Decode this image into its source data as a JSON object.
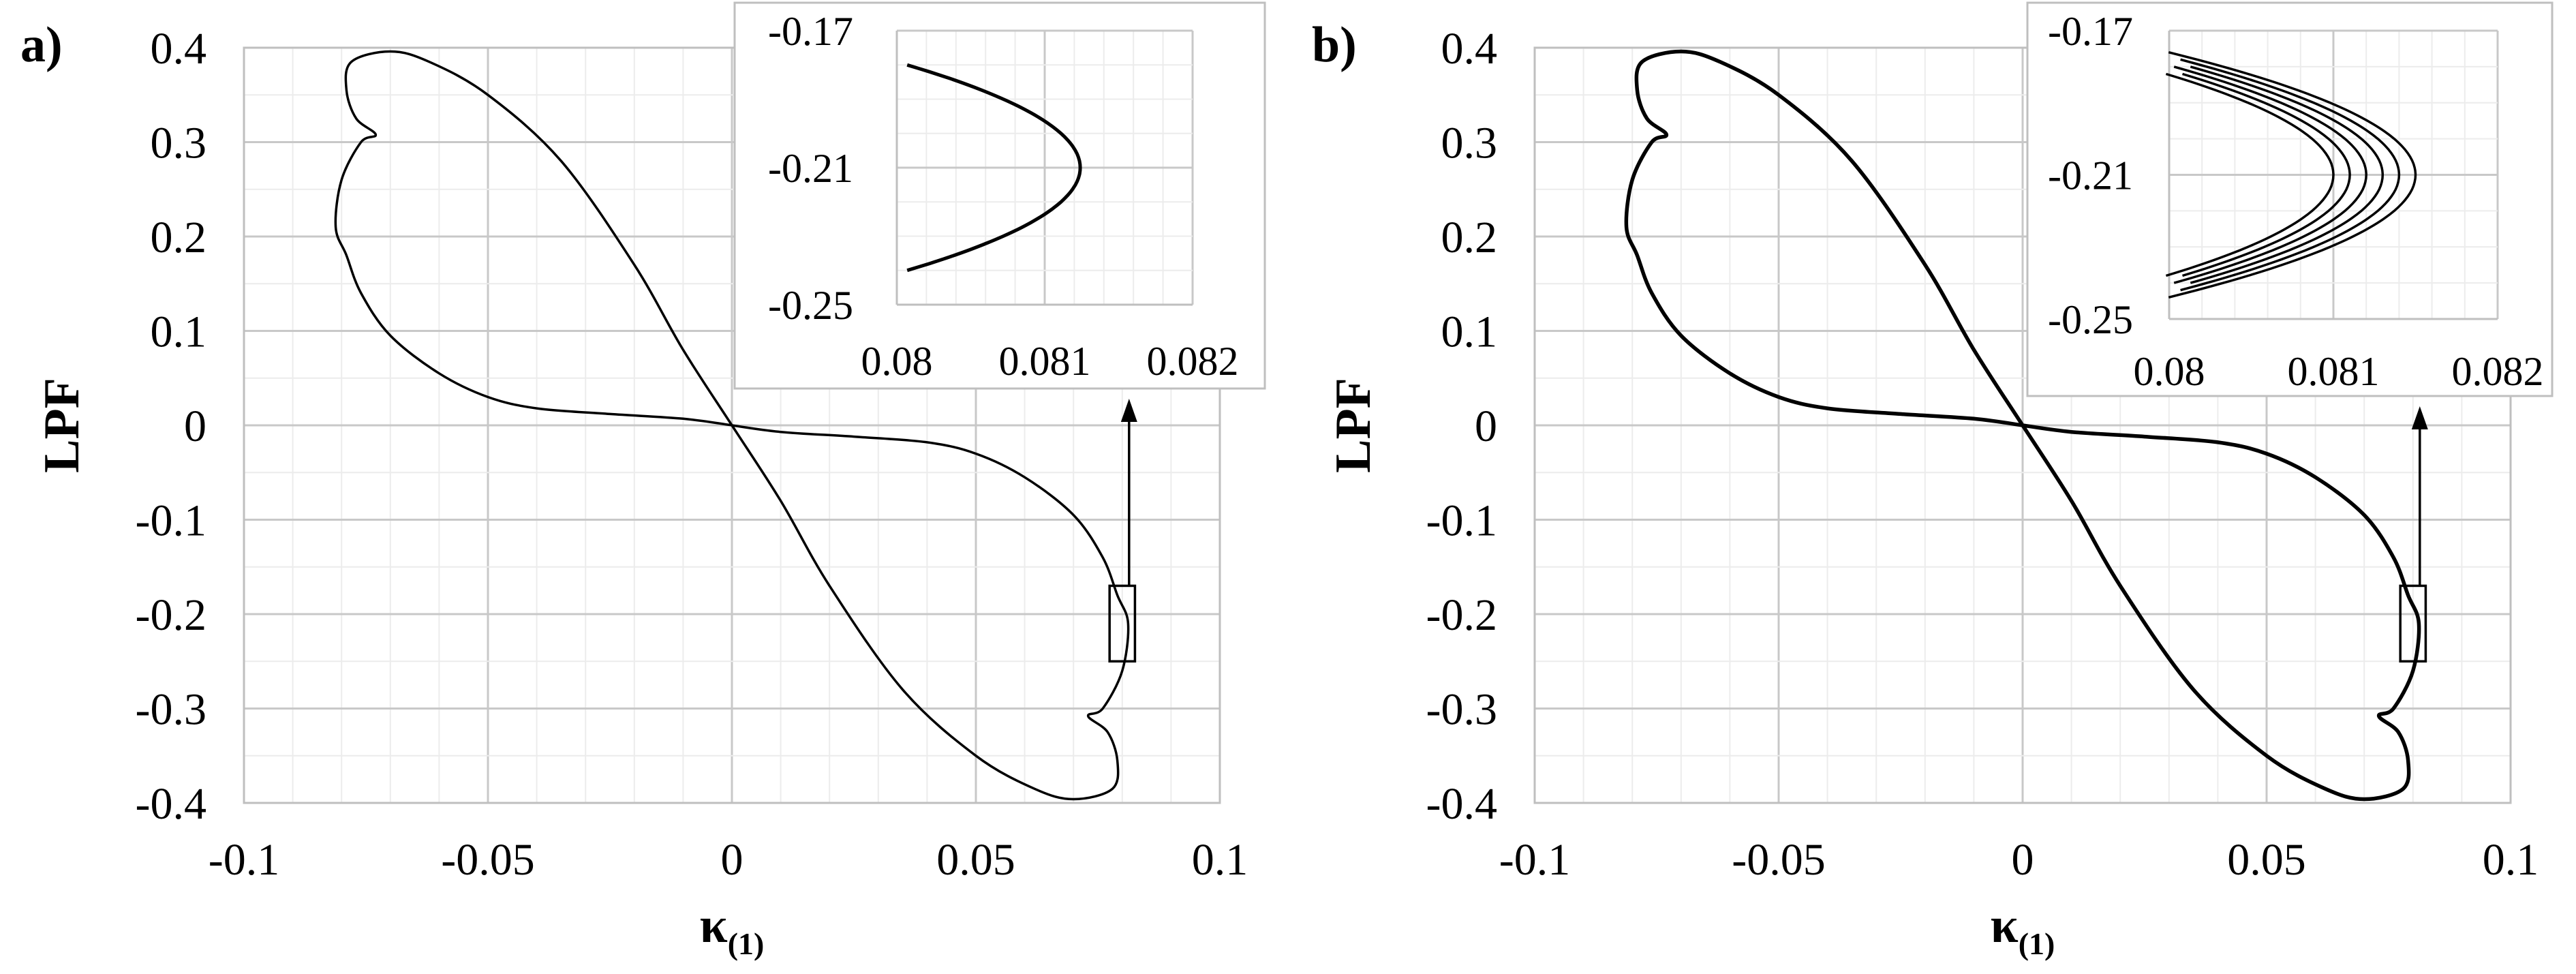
{
  "chart_data": [
    {
      "type": "line",
      "panel_label": "a)",
      "xlabel": "κ",
      "xlabel_subscript": "(1)",
      "ylabel": "LPF",
      "xlim": [
        -0.1,
        0.1
      ],
      "ylim": [
        -0.4,
        0.4
      ],
      "x_ticks": [
        "-0.1",
        "-0.05",
        "0",
        "0.05",
        "0.1"
      ],
      "y_ticks": [
        "0.4",
        "0.3",
        "0.2",
        "0.1",
        "0",
        "-0.1",
        "-0.2",
        "-0.3",
        "-0.4"
      ],
      "grid": true,
      "series": [
        {
          "points": [
            [
              0,
              0
            ],
            [
              0.01,
              -0.007
            ],
            [
              0.025,
              -0.012
            ],
            [
              0.04,
              -0.018
            ],
            [
              0.05,
              -0.03
            ],
            [
              0.06,
              -0.055
            ],
            [
              0.07,
              -0.095
            ],
            [
              0.076,
              -0.14
            ],
            [
              0.079,
              -0.18
            ],
            [
              0.0812,
              -0.21
            ],
            [
              0.08,
              -0.26
            ],
            [
              0.076,
              -0.3
            ],
            [
              0.073,
              -0.308
            ],
            [
              0.077,
              -0.325
            ],
            [
              0.079,
              -0.355
            ],
            [
              0.078,
              -0.385
            ],
            [
              0.07,
              -0.396
            ],
            [
              0.062,
              -0.385
            ],
            [
              0.05,
              -0.35
            ],
            [
              0.035,
              -0.28
            ],
            [
              0.02,
              -0.17
            ],
            [
              0.01,
              -0.08
            ],
            [
              0,
              0
            ],
            [
              -0.01,
              0.08
            ],
            [
              -0.02,
              0.17
            ],
            [
              -0.035,
              0.28
            ],
            [
              -0.05,
              0.35
            ],
            [
              -0.062,
              0.385
            ],
            [
              -0.07,
              0.396
            ],
            [
              -0.078,
              0.385
            ],
            [
              -0.079,
              0.355
            ],
            [
              -0.077,
              0.325
            ],
            [
              -0.073,
              0.308
            ],
            [
              -0.076,
              0.3
            ],
            [
              -0.08,
              0.26
            ],
            [
              -0.0812,
              0.21
            ],
            [
              -0.079,
              0.18
            ],
            [
              -0.076,
              0.14
            ],
            [
              -0.07,
              0.095
            ],
            [
              -0.06,
              0.055
            ],
            [
              -0.05,
              0.03
            ],
            [
              -0.04,
              0.018
            ],
            [
              -0.025,
              0.012
            ],
            [
              -0.01,
              0.007
            ],
            [
              0,
              0
            ]
          ]
        }
      ],
      "zoom_box": {
        "xlim": [
          0.0774,
          0.0826
        ],
        "ylim": [
          -0.25,
          -0.17
        ]
      },
      "inset": {
        "xlim": [
          0.08,
          0.082
        ],
        "ylim": [
          -0.25,
          -0.17
        ],
        "x_ticks": [
          "0.08",
          "0.081",
          "0.082"
        ],
        "y_ticks": [
          "-0.17",
          "-0.21",
          "-0.25"
        ],
        "curve_offsets": [
          0
        ],
        "curve_apex": 0.08124
      }
    },
    {
      "type": "line",
      "panel_label": "b)",
      "xlabel": "κ",
      "xlabel_subscript": "(1)",
      "ylabel": "LPF",
      "xlim": [
        -0.1,
        0.1
      ],
      "ylim": [
        -0.4,
        0.4
      ],
      "x_ticks": [
        "-0.1",
        "-0.05",
        "0",
        "0.05",
        "0.1"
      ],
      "y_ticks": [
        "0.4",
        "0.3",
        "0.2",
        "0.1",
        "0",
        "-0.1",
        "-0.2",
        "-0.3",
        "-0.4"
      ],
      "grid": true,
      "series": [
        {
          "points": [
            [
              0,
              0
            ],
            [
              0.01,
              -0.007
            ],
            [
              0.025,
              -0.012
            ],
            [
              0.04,
              -0.018
            ],
            [
              0.05,
              -0.03
            ],
            [
              0.06,
              -0.055
            ],
            [
              0.07,
              -0.095
            ],
            [
              0.076,
              -0.14
            ],
            [
              0.079,
              -0.18
            ],
            [
              0.0812,
              -0.21
            ],
            [
              0.08,
              -0.26
            ],
            [
              0.076,
              -0.3
            ],
            [
              0.073,
              -0.308
            ],
            [
              0.077,
              -0.325
            ],
            [
              0.079,
              -0.355
            ],
            [
              0.078,
              -0.385
            ],
            [
              0.07,
              -0.396
            ],
            [
              0.062,
              -0.385
            ],
            [
              0.05,
              -0.35
            ],
            [
              0.035,
              -0.28
            ],
            [
              0.02,
              -0.17
            ],
            [
              0.01,
              -0.08
            ],
            [
              0,
              0
            ],
            [
              -0.01,
              0.08
            ],
            [
              -0.02,
              0.17
            ],
            [
              -0.035,
              0.28
            ],
            [
              -0.05,
              0.35
            ],
            [
              -0.062,
              0.385
            ],
            [
              -0.07,
              0.396
            ],
            [
              -0.078,
              0.385
            ],
            [
              -0.079,
              0.355
            ],
            [
              -0.077,
              0.325
            ],
            [
              -0.073,
              0.308
            ],
            [
              -0.076,
              0.3
            ],
            [
              -0.08,
              0.26
            ],
            [
              -0.0812,
              0.21
            ],
            [
              -0.079,
              0.18
            ],
            [
              -0.076,
              0.14
            ],
            [
              -0.07,
              0.095
            ],
            [
              -0.06,
              0.055
            ],
            [
              -0.05,
              0.03
            ],
            [
              -0.04,
              0.018
            ],
            [
              -0.025,
              0.012
            ],
            [
              -0.01,
              0.007
            ],
            [
              0,
              0
            ]
          ]
        }
      ],
      "zoom_box": {
        "xlim": [
          0.0774,
          0.0826
        ],
        "ylim": [
          -0.25,
          -0.17
        ]
      },
      "inset": {
        "xlim": [
          0.08,
          0.082
        ],
        "ylim": [
          -0.25,
          -0.17
        ],
        "x_ticks": [
          "0.08",
          "0.081",
          "0.082"
        ],
        "y_ticks": [
          "-0.17",
          "-0.21",
          "-0.25"
        ],
        "curve_offsets": [
          0,
          0.0001,
          0.0002,
          0.0003,
          0.0004,
          0.0005
        ],
        "curve_apex": 0.081
      }
    }
  ]
}
